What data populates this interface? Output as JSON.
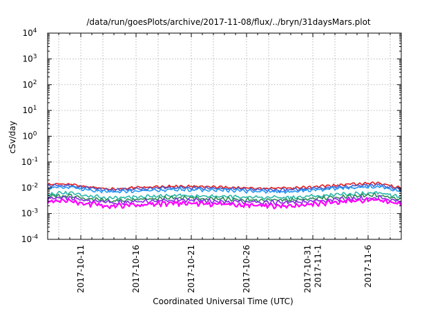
{
  "chart_data": {
    "type": "line",
    "title": "/data/run/goesPlots/archive/2017-11-08/flux/../bryn/31daysMars.plot",
    "ylabel": "cSv/day",
    "xlabel": "Coordinated Universal Time (UTC)",
    "yscale": "log",
    "ylim": [
      0.0001,
      10000
    ],
    "y_ticks": [
      {
        "value": 0.0001,
        "base": "10",
        "exp": "-4"
      },
      {
        "value": 0.001,
        "base": "10",
        "exp": "-3"
      },
      {
        "value": 0.01,
        "base": "10",
        "exp": "-2"
      },
      {
        "value": 0.1,
        "base": "10",
        "exp": "-1"
      },
      {
        "value": 1,
        "base": "10",
        "exp": "0"
      },
      {
        "value": 10,
        "base": "10",
        "exp": "1"
      },
      {
        "value": 100,
        "base": "10",
        "exp": "2"
      },
      {
        "value": 1000,
        "base": "10",
        "exp": "3"
      },
      {
        "value": 10000,
        "base": "10",
        "exp": "4"
      }
    ],
    "xlim": [
      "2017-10-08",
      "2017-11-09"
    ],
    "x_ticks": [
      {
        "value": "2017-10-11",
        "lines": [
          "2017-10-11"
        ]
      },
      {
        "value": "2017-10-16",
        "lines": [
          "2017-10-16"
        ]
      },
      {
        "value": "2017-10-21",
        "lines": [
          "2017-10-21"
        ]
      },
      {
        "value": "2017-10-26",
        "lines": [
          "2017-10-26"
        ]
      },
      {
        "value": "2017-11-01",
        "lines": [
          "2017-10-31",
          "2017-11-1"
        ]
      },
      {
        "value": "2017-11-06",
        "lines": [
          "2017-11-6"
        ]
      }
    ],
    "x_grid_dates": [
      "2017-10-09",
      "2017-10-11",
      "2017-10-13",
      "2017-10-16",
      "2017-10-18",
      "2017-10-21",
      "2017-10-23",
      "2017-10-26",
      "2017-10-28",
      "2017-11-01",
      "2017-11-03",
      "2017-11-06",
      "2017-11-08"
    ],
    "grid": true,
    "x": [
      "2017-10-08",
      "2017-10-10",
      "2017-10-12",
      "2017-10-14",
      "2017-10-16",
      "2017-10-18",
      "2017-10-20",
      "2017-10-22",
      "2017-10-24",
      "2017-10-26",
      "2017-10-28",
      "2017-10-30",
      "2017-11-01",
      "2017-11-03",
      "2017-11-05",
      "2017-11-07",
      "2017-11-09"
    ],
    "series": [
      {
        "color": "#e41a1c",
        "values": [
          0.0135,
          0.0142,
          0.0105,
          0.009,
          0.01,
          0.011,
          0.0115,
          0.011,
          0.0105,
          0.0098,
          0.0095,
          0.0095,
          0.011,
          0.0125,
          0.014,
          0.015,
          0.0098
        ]
      },
      {
        "color": "#4b5fd0",
        "values": [
          0.0118,
          0.0122,
          0.0092,
          0.008,
          0.0088,
          0.0095,
          0.01,
          0.0095,
          0.0092,
          0.0086,
          0.0083,
          0.0083,
          0.0096,
          0.0108,
          0.012,
          0.0128,
          0.0086
        ]
      },
      {
        "color": "#2196f3",
        "values": [
          0.01,
          0.0105,
          0.0079,
          0.0068,
          0.0075,
          0.0081,
          0.0086,
          0.0082,
          0.0079,
          0.0074,
          0.0071,
          0.0071,
          0.0082,
          0.0093,
          0.0103,
          0.011,
          0.0074
        ]
      },
      {
        "color": "#2ab7a9",
        "values": [
          0.0058,
          0.0062,
          0.0046,
          0.004,
          0.0045,
          0.0048,
          0.005,
          0.0048,
          0.0046,
          0.0043,
          0.0042,
          0.0042,
          0.0048,
          0.0054,
          0.006,
          0.0064,
          0.0044
        ]
      },
      {
        "color": "#2e8b57",
        "values": [
          0.0046,
          0.0049,
          0.0036,
          0.0031,
          0.0035,
          0.0038,
          0.004,
          0.0038,
          0.0036,
          0.0034,
          0.0033,
          0.0033,
          0.0038,
          0.0043,
          0.0048,
          0.0051,
          0.0035
        ]
      },
      {
        "color": "#8a2be2",
        "values": [
          0.0038,
          0.004,
          0.003,
          0.0026,
          0.0029,
          0.0031,
          0.0033,
          0.0031,
          0.003,
          0.0028,
          0.0027,
          0.0027,
          0.0031,
          0.0035,
          0.0039,
          0.0042,
          0.0029
        ]
      },
      {
        "color": "#ff00ff",
        "values": [
          0.003,
          0.0031,
          0.0023,
          0.0019,
          0.0022,
          0.0024,
          0.0025,
          0.0024,
          0.0023,
          0.0021,
          0.002,
          0.002,
          0.0024,
          0.0028,
          0.0031,
          0.0034,
          0.0022
        ]
      }
    ]
  }
}
